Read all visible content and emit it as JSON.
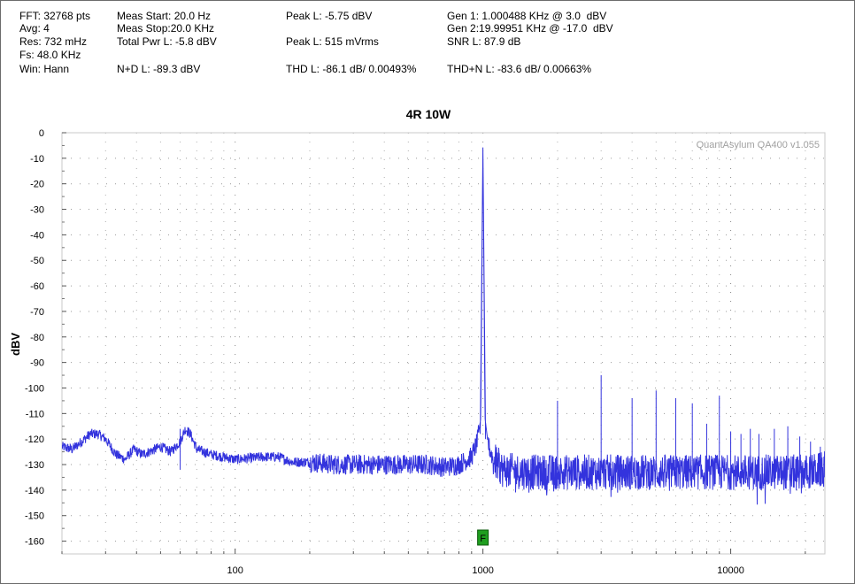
{
  "window": {
    "accent_color": "#3333dd",
    "marker_color": "#1f9e1f"
  },
  "info": {
    "fft": "FFT: 32768 pts",
    "avg": "Avg: 4",
    "res": "Res: 732 mHz",
    "fs": "Fs: 48.0 KHz",
    "win": "Win: Hann",
    "meas_start": "Meas Start: 20.0 Hz",
    "meas_stop": "Meas Stop:20.0 KHz",
    "total_pwr": "Total Pwr L: -5.8 dBV",
    "nd": "N+D L: -89.3 dBV",
    "peak_dbv": "Peak L: -5.75 dBV",
    "peak_rms": "Peak L: 515 mVrms",
    "thd": "THD L: -86.1 dB/ 0.00493%",
    "gen1": "Gen 1: 1.000488 KHz @ 3.0  dBV",
    "gen2": "Gen 2:19.99951 KHz @ -17.0  dBV",
    "snr": "SNR L: 87.9 dB",
    "thdn": "THD+N L: -83.6 dB/ 0.00663%"
  },
  "chart_data": {
    "type": "line",
    "title": "4R 10W",
    "xlabel": "",
    "ylabel": "dBV",
    "x_scale": "log",
    "xlim": [
      20,
      24000
    ],
    "ylim": [
      -165,
      0
    ],
    "x_tick_labels": [
      "100",
      "1000",
      "10000"
    ],
    "y_tick_labels": [
      "0",
      "-10",
      "-20",
      "-30",
      "-40",
      "-50",
      "-60",
      "-70",
      "-80",
      "-90",
      "-100",
      "-110",
      "-120",
      "-130",
      "-140",
      "-150",
      "-160"
    ],
    "grid": true,
    "watermark": "QuantAsylum QA400 v1.055",
    "marker": {
      "label": "F",
      "x": 1000
    },
    "series": [
      {
        "color": "#3333dd",
        "noise_floor": [
          [
            20,
            -123
          ],
          [
            22,
            -124
          ],
          [
            24,
            -121
          ],
          [
            26,
            -118
          ],
          [
            28,
            -118
          ],
          [
            30,
            -120
          ],
          [
            33,
            -126
          ],
          [
            36,
            -128
          ],
          [
            39,
            -124
          ],
          [
            42,
            -126
          ],
          [
            45,
            -125
          ],
          [
            50,
            -123
          ],
          [
            55,
            -125
          ],
          [
            60,
            -121
          ],
          [
            63,
            -116
          ],
          [
            66,
            -118
          ],
          [
            70,
            -124
          ],
          [
            80,
            -126
          ],
          [
            100,
            -128
          ],
          [
            130,
            -127
          ],
          [
            150,
            -127
          ],
          [
            170,
            -129
          ],
          [
            200,
            -129
          ],
          [
            250,
            -130
          ],
          [
            300,
            -130
          ],
          [
            400,
            -130
          ],
          [
            500,
            -130
          ],
          [
            600,
            -130
          ],
          [
            700,
            -131
          ],
          [
            800,
            -130
          ],
          [
            900,
            -127
          ],
          [
            950,
            -121
          ],
          [
            980,
            -112
          ],
          [
            1000,
            -5.75
          ],
          [
            1020,
            -112
          ],
          [
            1050,
            -122
          ],
          [
            1100,
            -128
          ],
          [
            1200,
            -132
          ],
          [
            1500,
            -133
          ],
          [
            2000,
            -133
          ],
          [
            3000,
            -133
          ],
          [
            5000,
            -133
          ],
          [
            8000,
            -133
          ],
          [
            12000,
            -133
          ],
          [
            16000,
            -133
          ],
          [
            20000,
            -133
          ],
          [
            24000,
            -132
          ]
        ],
        "harmonics": [
          {
            "x": 60,
            "y": -116
          },
          {
            "x": 2000,
            "y": -105
          },
          {
            "x": 3000,
            "y": -95
          },
          {
            "x": 4000,
            "y": -104
          },
          {
            "x": 5000,
            "y": -101
          },
          {
            "x": 6000,
            "y": -104
          },
          {
            "x": 7000,
            "y": -106
          },
          {
            "x": 8000,
            "y": -114
          },
          {
            "x": 9000,
            "y": -103
          },
          {
            "x": 10000,
            "y": -117
          },
          {
            "x": 11000,
            "y": -118
          },
          {
            "x": 12000,
            "y": -116
          },
          {
            "x": 13000,
            "y": -118
          },
          {
            "x": 15000,
            "y": -116
          },
          {
            "x": 17000,
            "y": -115
          },
          {
            "x": 19000,
            "y": -119
          },
          {
            "x": 21000,
            "y": -121
          },
          {
            "x": 23000,
            "y": -123
          }
        ]
      }
    ]
  }
}
